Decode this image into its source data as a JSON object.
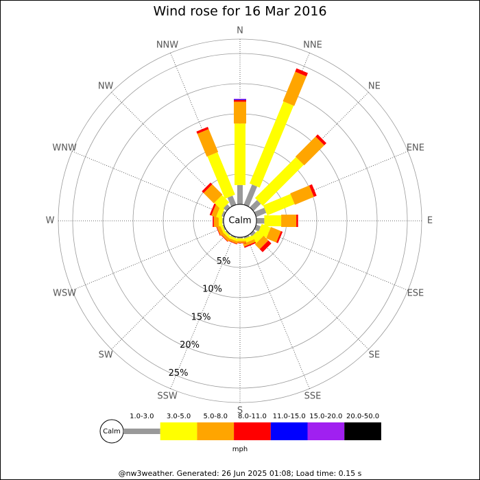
{
  "chart_data": {
    "type": "windrose",
    "title": "Wind rose for 16 Mar 2016",
    "categories": [
      "N",
      "NNE",
      "NE",
      "ENE",
      "E",
      "ESE",
      "SE",
      "SSE",
      "S",
      "SSW",
      "SW",
      "WSW",
      "W",
      "WNW",
      "NW",
      "NNW"
    ],
    "center_label": "Calm",
    "rlim": [
      0,
      25
    ],
    "rticks": [
      {
        "value": 5,
        "label": "5%"
      },
      {
        "value": 10,
        "label": "10%"
      },
      {
        "value": 15,
        "label": "15%"
      },
      {
        "value": 20,
        "label": "20%"
      },
      {
        "value": 25,
        "label": "25%"
      }
    ],
    "legend_title": "mph",
    "series": [
      {
        "name": "1.0-3.0",
        "color": "#999999",
        "values": [
          3.2,
          3.6,
          1.7,
          1.8,
          1.3,
          0.8,
          0.5,
          0.3,
          0.2,
          0.2,
          0.2,
          0.2,
          0.2,
          0.4,
          0.7,
          1.6
        ]
      },
      {
        "name": "3.0-5.0",
        "color": "#ffff00",
        "values": [
          10.2,
          14.7,
          9.6,
          4.9,
          2.8,
          1.6,
          1.3,
          0.7,
          0.4,
          0.4,
          0.4,
          0.4,
          0.6,
          0.8,
          1.7,
          7.6
        ]
      },
      {
        "name": "5.0-8.0",
        "color": "#ffa500",
        "values": [
          3.6,
          5.3,
          4.7,
          3.4,
          2.5,
          1.8,
          1.1,
          0.5,
          0.3,
          0.4,
          0.5,
          0.6,
          0.8,
          0.8,
          2.4,
          4.1
        ]
      },
      {
        "name": "8.0-11.0",
        "color": "#ff0000",
        "values": [
          0.3,
          0.6,
          0.5,
          0.5,
          0.3,
          0.3,
          0.7,
          0.2,
          0.1,
          0.1,
          0.1,
          0.1,
          0.2,
          0.3,
          0.4,
          0.4
        ]
      },
      {
        "name": "11.0-15.0",
        "color": "#0000ff",
        "values": [
          0.1,
          0,
          0,
          0,
          0,
          0,
          0,
          0,
          0,
          0,
          0,
          0,
          0,
          0,
          0,
          0
        ]
      },
      {
        "name": "15.0-20.0",
        "color": "#a020f0",
        "values": [
          0.1,
          0,
          0,
          0,
          0,
          0,
          0,
          0,
          0,
          0,
          0,
          0,
          0,
          0,
          0,
          0
        ]
      },
      {
        "name": "20.0-50.0",
        "color": "#000000",
        "values": [
          0,
          0,
          0,
          0,
          0,
          0,
          0,
          0,
          0,
          0,
          0,
          0,
          0,
          0,
          0,
          0
        ]
      }
    ]
  },
  "footer": "@nw3weather. Generated: 26 Jun 2025 01:08; Load time: 0.15 s"
}
